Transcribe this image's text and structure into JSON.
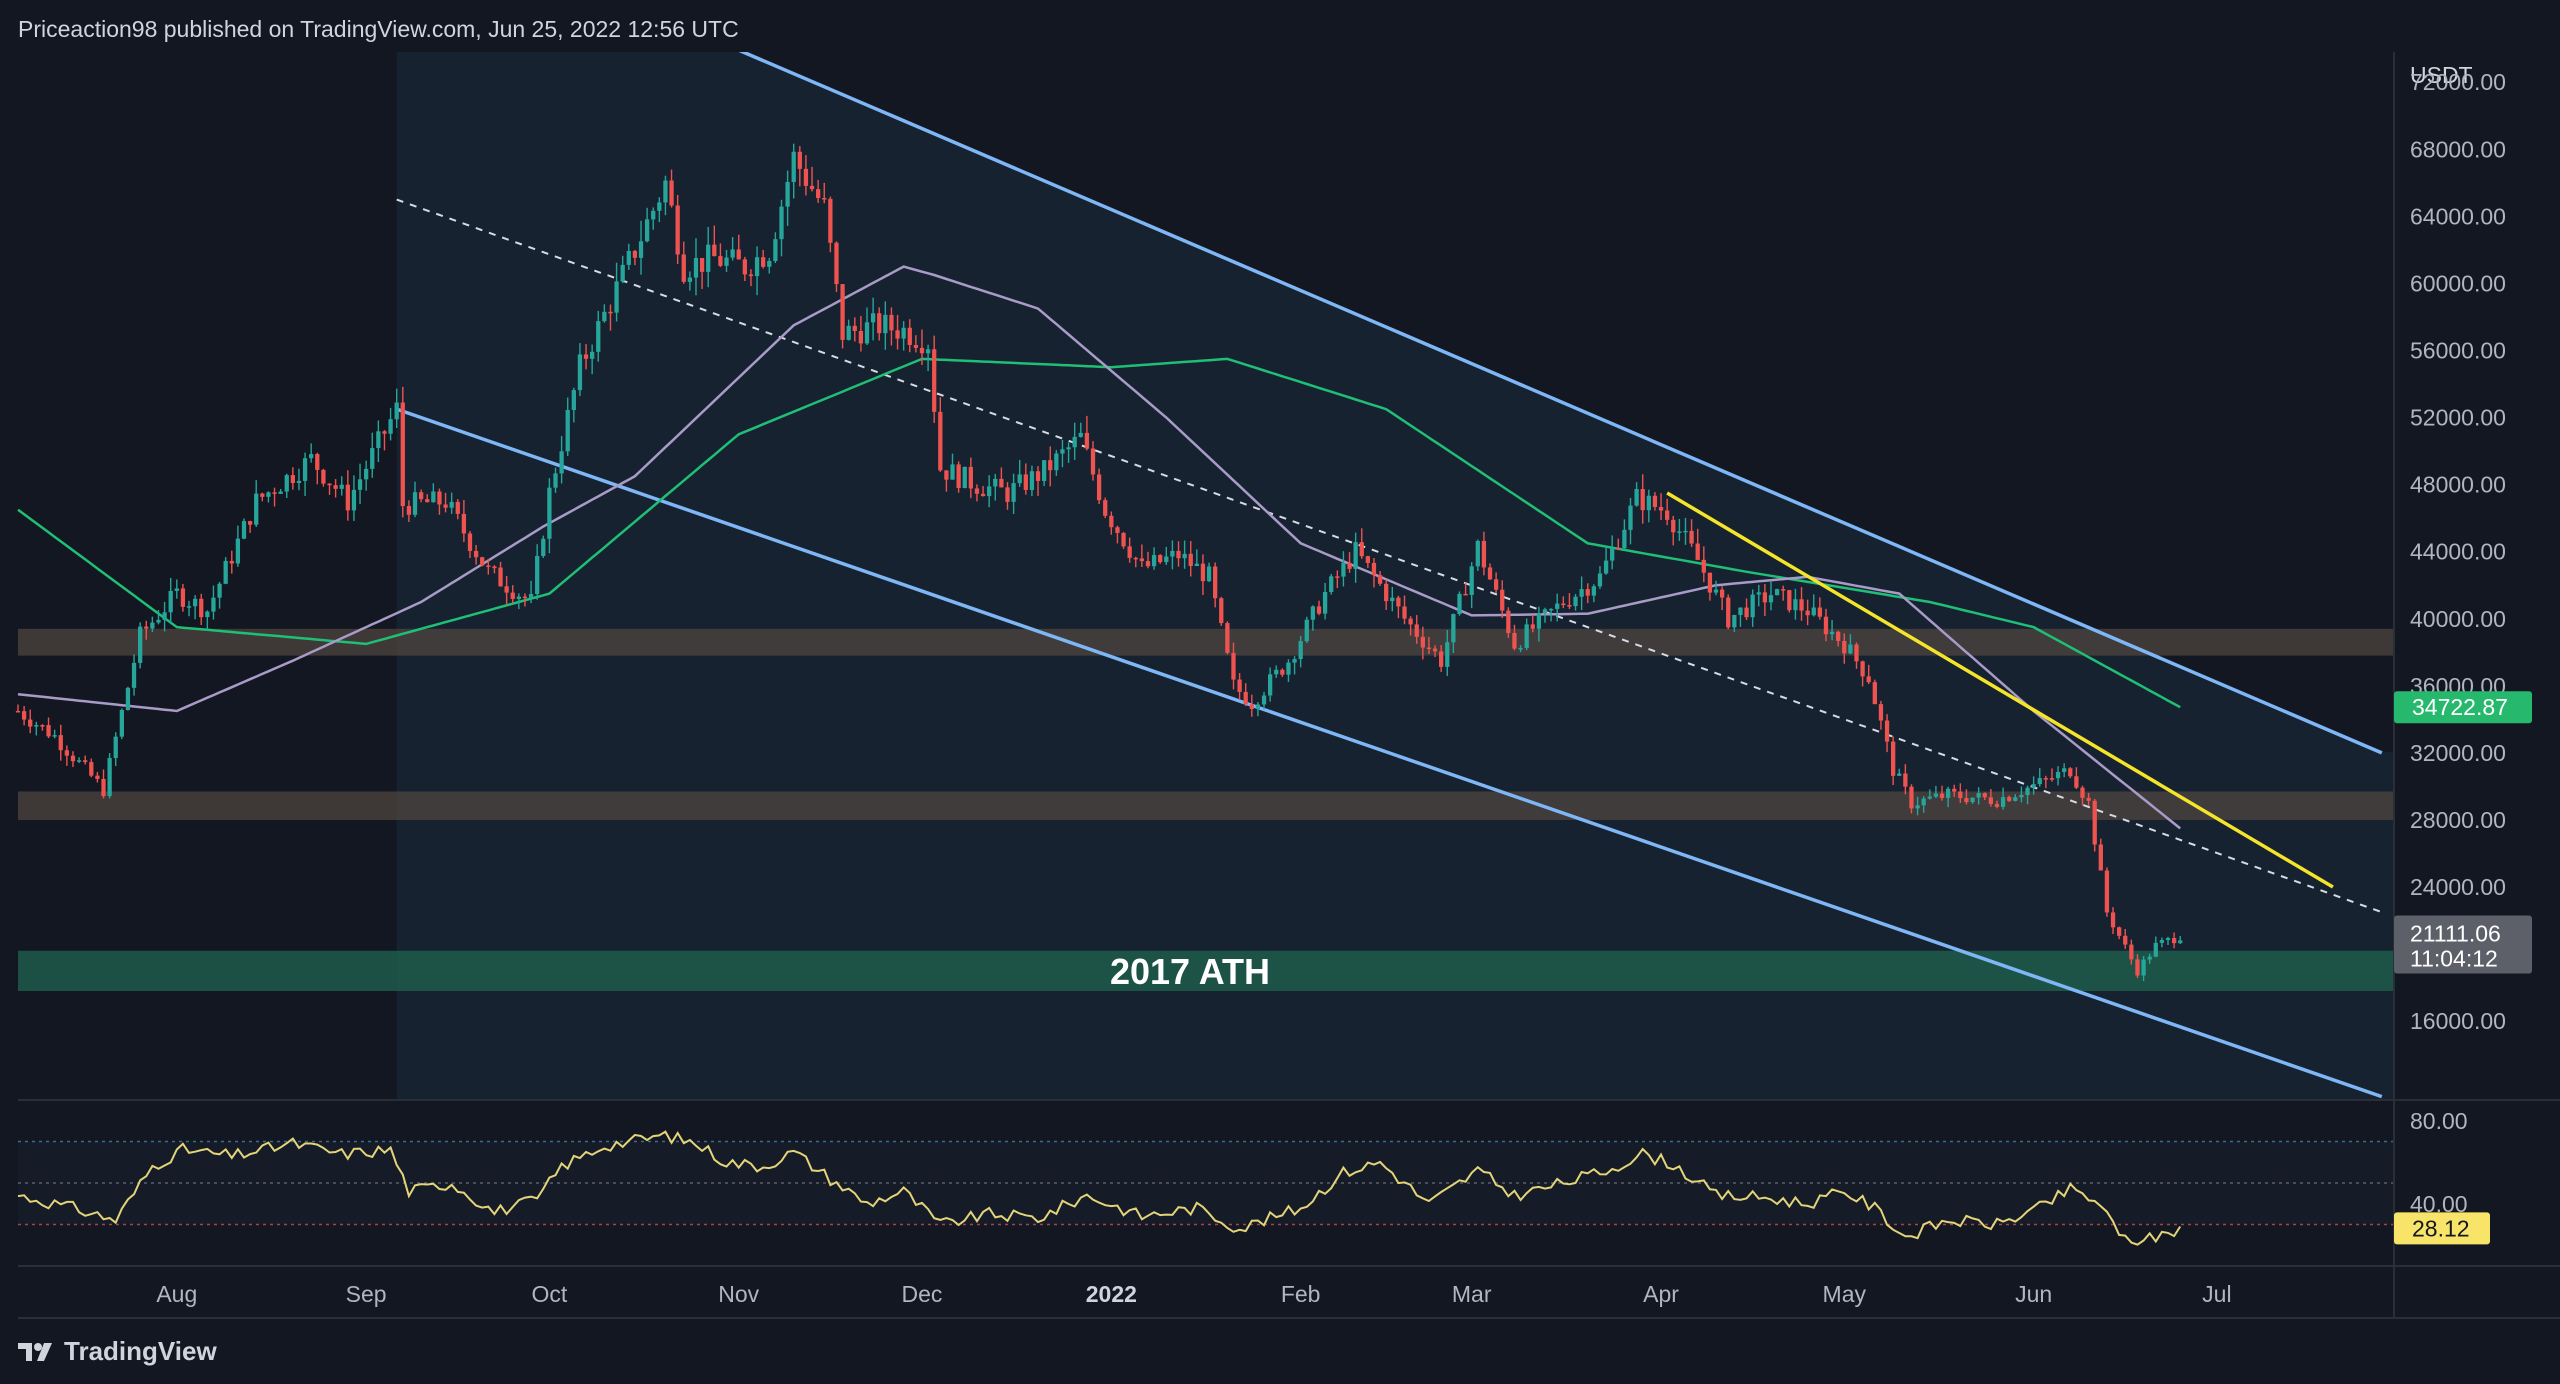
{
  "header": {
    "publish_text": "Priceaction98 published on TradingView.com, Jun 25, 2022 12:56 UTC"
  },
  "footer": {
    "brand": "TradingView"
  },
  "colors": {
    "background": "#131722",
    "candle_up": "#26a69a",
    "candle_down": "#ef5350",
    "channel": "#7eb6f6",
    "trendline": "#f5e52a",
    "ma_green": "#1fbf75",
    "ma_purple": "#a99bc8",
    "rsi": "#e3d47a",
    "zone_brown": "#4d453f",
    "zone_green": "#1f5a4b",
    "ma_badge": "#26b86c",
    "rsi_badge": "#f7e468"
  },
  "chart_data": {
    "type": "candlestick",
    "y_axis": {
      "unit": "USDT",
      "ticks": [
        "72000.00",
        "68000.00",
        "64000.00",
        "60000.00",
        "56000.00",
        "52000.00",
        "48000.00",
        "44000.00",
        "40000.00",
        "36000.00",
        "32000.00",
        "28000.00",
        "24000.00",
        "16000.00"
      ],
      "tick_values": [
        72000,
        68000,
        64000,
        60000,
        56000,
        52000,
        48000,
        44000,
        40000,
        36000,
        32000,
        28000,
        24000,
        16000
      ],
      "range": [
        11300,
        73800
      ]
    },
    "x_axis": {
      "labels": [
        "Aug",
        "Sep",
        "Oct",
        "Nov",
        "Dec",
        "2022",
        "Feb",
        "Mar",
        "Apr",
        "May",
        "Jun",
        "Jul"
      ],
      "label_dates": [
        "2021-08-01",
        "2021-09-01",
        "2021-10-01",
        "2021-11-01",
        "2021-12-01",
        "2022-01-01",
        "2022-02-01",
        "2022-03-01",
        "2022-04-01",
        "2022-05-01",
        "2022-06-01",
        "2022-07-01"
      ],
      "range": [
        "2021-07-06",
        "2022-07-30"
      ]
    },
    "price_path": [
      [
        "2021-07-06",
        34500
      ],
      [
        "2021-07-12",
        33000
      ],
      [
        "2021-07-20",
        29800
      ],
      [
        "2021-07-26",
        39000
      ],
      [
        "2021-08-01",
        41500
      ],
      [
        "2021-08-06",
        40500
      ],
      [
        "2021-08-14",
        47000
      ],
      [
        "2021-08-23",
        49500
      ],
      [
        "2021-08-29",
        47000
      ],
      [
        "2021-09-06",
        52500
      ],
      [
        "2021-09-07",
        46800
      ],
      [
        "2021-09-14",
        47000
      ],
      [
        "2021-09-21",
        42800
      ],
      [
        "2021-09-28",
        41000
      ],
      [
        "2021-10-01",
        47500
      ],
      [
        "2021-10-06",
        55000
      ],
      [
        "2021-10-15",
        62000
      ],
      [
        "2021-10-20",
        66000
      ],
      [
        "2021-10-23",
        61000
      ],
      [
        "2021-10-28",
        61500
      ],
      [
        "2021-11-02",
        61000
      ],
      [
        "2021-11-06",
        62000
      ],
      [
        "2021-11-10",
        67500
      ],
      [
        "2021-11-15",
        64500
      ],
      [
        "2021-11-18",
        57000
      ],
      [
        "2021-11-24",
        57500
      ],
      [
        "2021-11-28",
        57200
      ],
      [
        "2021-12-02",
        56500
      ],
      [
        "2021-12-04",
        49000
      ],
      [
        "2021-12-10",
        48000
      ],
      [
        "2021-12-15",
        47500
      ],
      [
        "2021-12-21",
        48800
      ],
      [
        "2021-12-27",
        50800
      ],
      [
        "2021-12-31",
        46500
      ],
      [
        "2022-01-06",
        43000
      ],
      [
        "2022-01-12",
        43800
      ],
      [
        "2022-01-17",
        42500
      ],
      [
        "2022-01-21",
        36000
      ],
      [
        "2022-01-24",
        35000
      ],
      [
        "2022-01-30",
        37500
      ],
      [
        "2022-02-05",
        41500
      ],
      [
        "2022-02-10",
        44000
      ],
      [
        "2022-02-18",
        40000
      ],
      [
        "2022-02-24",
        37500
      ],
      [
        "2022-03-02",
        44300
      ],
      [
        "2022-03-08",
        38500
      ],
      [
        "2022-03-16",
        41000
      ],
      [
        "2022-03-22",
        42500
      ],
      [
        "2022-03-28",
        47200
      ],
      [
        "2022-04-02",
        46400
      ],
      [
        "2022-04-07",
        43500
      ],
      [
        "2022-04-12",
        40000
      ],
      [
        "2022-04-19",
        41500
      ],
      [
        "2022-04-25",
        40500
      ],
      [
        "2022-05-01",
        38500
      ],
      [
        "2022-05-05",
        36500
      ],
      [
        "2022-05-09",
        31000
      ],
      [
        "2022-05-12",
        29000
      ],
      [
        "2022-05-18",
        29500
      ],
      [
        "2022-05-26",
        29200
      ],
      [
        "2022-06-02",
        30200
      ],
      [
        "2022-06-07",
        31000
      ],
      [
        "2022-06-10",
        29000
      ],
      [
        "2022-06-13",
        22500
      ],
      [
        "2022-06-18",
        19000
      ],
      [
        "2022-06-21",
        20500
      ],
      [
        "2022-06-25",
        21111
      ]
    ],
    "moving_averages": [
      {
        "name": "green",
        "last_value": "34722.87",
        "points": [
          [
            "2021-07-06",
            46500
          ],
          [
            "2021-08-01",
            39500
          ],
          [
            "2021-09-01",
            38500
          ],
          [
            "2021-10-01",
            41500
          ],
          [
            "2021-11-01",
            51000
          ],
          [
            "2021-12-01",
            55500
          ],
          [
            "2022-01-01",
            55000
          ],
          [
            "2022-01-20",
            55500
          ],
          [
            "2022-02-15",
            52500
          ],
          [
            "2022-03-20",
            44500
          ],
          [
            "2022-04-15",
            42800
          ],
          [
            "2022-05-15",
            41000
          ],
          [
            "2022-06-01",
            39500
          ],
          [
            "2022-06-25",
            34723
          ]
        ]
      },
      {
        "name": "purple",
        "points": [
          [
            "2021-07-06",
            35500
          ],
          [
            "2021-08-01",
            34500
          ],
          [
            "2021-08-20",
            37500
          ],
          [
            "2021-09-10",
            41000
          ],
          [
            "2021-09-30",
            45500
          ],
          [
            "2021-10-15",
            48500
          ],
          [
            "2021-11-10",
            57500
          ],
          [
            "2021-11-28",
            61000
          ],
          [
            "2021-12-03",
            60500
          ],
          [
            "2021-12-20",
            58500
          ],
          [
            "2022-01-10",
            52000
          ],
          [
            "2022-02-01",
            44500
          ],
          [
            "2022-03-01",
            40200
          ],
          [
            "2022-03-20",
            40300
          ],
          [
            "2022-04-10",
            42000
          ],
          [
            "2022-04-25",
            42500
          ],
          [
            "2022-05-10",
            41500
          ],
          [
            "2022-06-01",
            34500
          ],
          [
            "2022-06-25",
            27500
          ]
        ]
      }
    ],
    "channel": {
      "upper": [
        [
          "2021-10-25",
          75000
        ],
        [
          "2022-07-28",
          32000
        ]
      ],
      "middle": [
        [
          "2021-09-06",
          65000
        ],
        [
          "2022-07-28",
          22500
        ]
      ],
      "lower": [
        [
          "2021-09-06",
          52500
        ],
        [
          "2022-07-28",
          11500
        ]
      ],
      "range_start": "2021-09-06"
    },
    "trendline": [
      [
        "2022-04-02",
        47500
      ],
      [
        "2022-07-20",
        24000
      ]
    ],
    "zones": [
      {
        "from": 37800,
        "to": 39400,
        "label": ""
      },
      {
        "from": 28000,
        "to": 29700,
        "label": ""
      },
      {
        "from": 17800,
        "to": 20200,
        "label": "2017 ATH"
      }
    ],
    "last_price": {
      "value": "21111.06",
      "countdown": "11:04:12"
    },
    "rsi": {
      "ticks": [
        "80.00",
        "40.00"
      ],
      "tick_values": [
        80,
        40
      ],
      "levels": [
        70,
        50,
        30
      ],
      "range": [
        10,
        90
      ],
      "last_value": "28.12",
      "points": [
        [
          "2021-07-06",
          44
        ],
        [
          "2021-07-15",
          38
        ],
        [
          "2021-07-22",
          32
        ],
        [
          "2021-07-28",
          58
        ],
        [
          "2021-08-02",
          66
        ],
        [
          "2021-08-10",
          63
        ],
        [
          "2021-08-20",
          69
        ],
        [
          "2021-08-28",
          64
        ],
        [
          "2021-09-05",
          66
        ],
        [
          "2021-09-08",
          46
        ],
        [
          "2021-09-15",
          50
        ],
        [
          "2021-09-22",
          36
        ],
        [
          "2021-09-29",
          42
        ],
        [
          "2021-10-03",
          58
        ],
        [
          "2021-10-10",
          68
        ],
        [
          "2021-10-20",
          73
        ],
        [
          "2021-10-25",
          69
        ],
        [
          "2021-10-30",
          60
        ],
        [
          "2021-11-05",
          58
        ],
        [
          "2021-11-10",
          65
        ],
        [
          "2021-11-16",
          52
        ],
        [
          "2021-11-22",
          40
        ],
        [
          "2021-11-28",
          46
        ],
        [
          "2021-12-04",
          30
        ],
        [
          "2021-12-12",
          35
        ],
        [
          "2021-12-20",
          33
        ],
        [
          "2021-12-28",
          44
        ],
        [
          "2022-01-06",
          34
        ],
        [
          "2022-01-15",
          38
        ],
        [
          "2022-01-22",
          28
        ],
        [
          "2022-02-01",
          38
        ],
        [
          "2022-02-08",
          55
        ],
        [
          "2022-02-14",
          60
        ],
        [
          "2022-02-22",
          40
        ],
        [
          "2022-03-02",
          56
        ],
        [
          "2022-03-08",
          44
        ],
        [
          "2022-03-16",
          50
        ],
        [
          "2022-03-23",
          56
        ],
        [
          "2022-03-29",
          64
        ],
        [
          "2022-04-03",
          59
        ],
        [
          "2022-04-10",
          44
        ],
        [
          "2022-04-18",
          43
        ],
        [
          "2022-04-25",
          40
        ],
        [
          "2022-05-01",
          46
        ],
        [
          "2022-05-06",
          38
        ],
        [
          "2022-05-11",
          24
        ],
        [
          "2022-05-18",
          32
        ],
        [
          "2022-05-26",
          30
        ],
        [
          "2022-06-02",
          38
        ],
        [
          "2022-06-07",
          47
        ],
        [
          "2022-06-12",
          40
        ],
        [
          "2022-06-15",
          24
        ],
        [
          "2022-06-19",
          22
        ],
        [
          "2022-06-25",
          28
        ]
      ]
    }
  }
}
